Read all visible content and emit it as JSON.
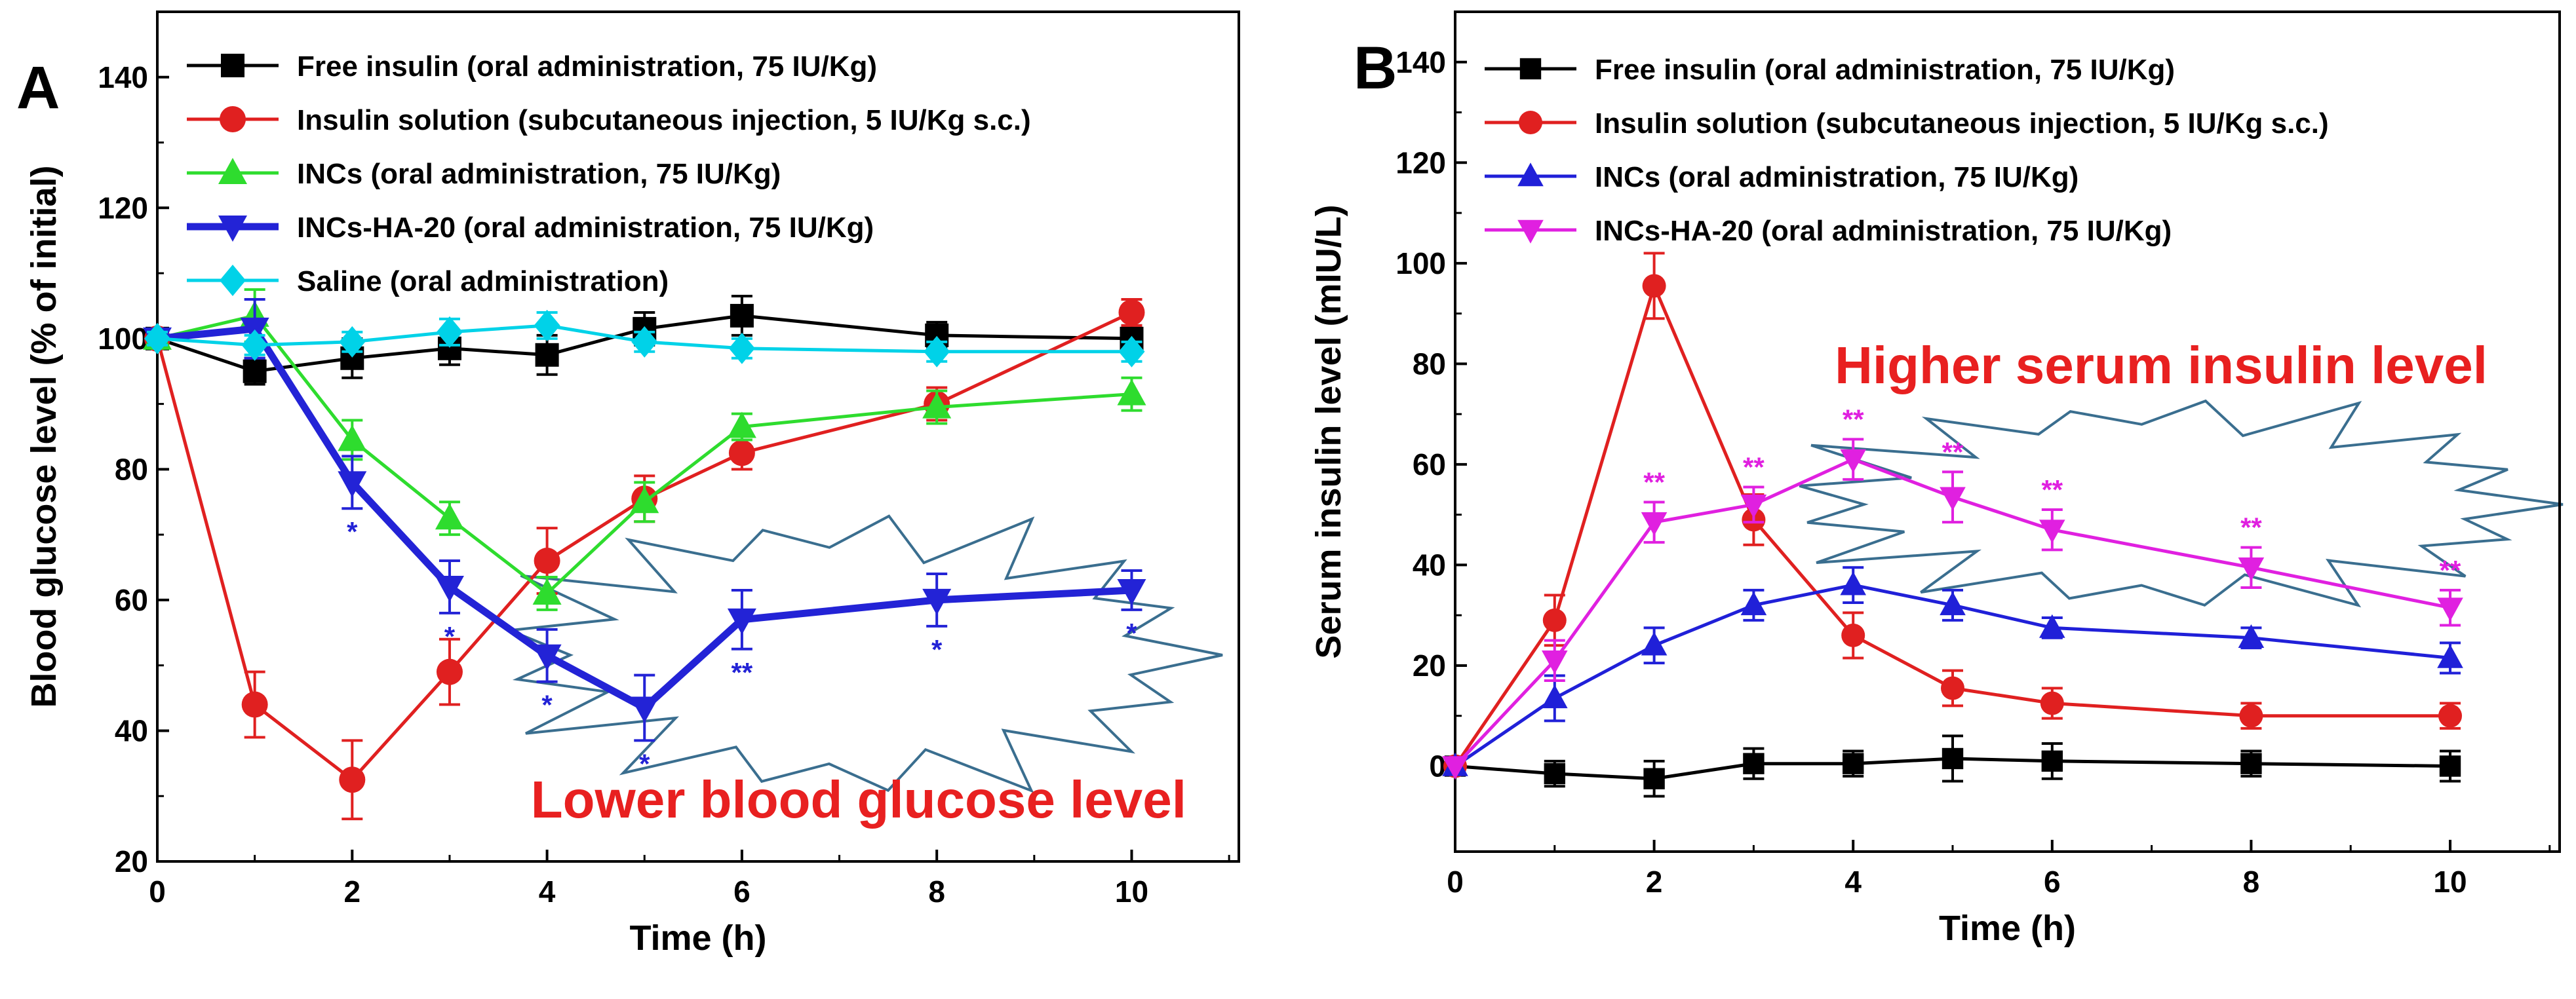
{
  "chart_data": [
    {
      "panel_label": "A",
      "type": "line",
      "title": "",
      "xlabel": "Time (h)",
      "ylabel": "Blood glucose level (% of initial)",
      "xlim": [
        0,
        11.1
      ],
      "ylim": [
        20,
        150
      ],
      "xticks": [
        0,
        2,
        4,
        6,
        8,
        10
      ],
      "yticks": [
        20,
        40,
        60,
        80,
        100,
        120,
        140
      ],
      "x": [
        0,
        1,
        2,
        3,
        4,
        5,
        6,
        8,
        10
      ],
      "legend_position": "top-left",
      "series": [
        {
          "name": "Free insulin (oral administration, 75 IU/Kg)",
          "color": "#000000",
          "marker": "square",
          "values": [
            100,
            95,
            97,
            98.5,
            97.5,
            101.5,
            103.5,
            100.5,
            100
          ],
          "errors": [
            1,
            2,
            3,
            2.5,
            3,
            2.5,
            3,
            2,
            2
          ]
        },
        {
          "name": "Insulin solution (subcutaneous injection, 5 IU/Kg s.c.)",
          "color": "#e02020",
          "marker": "circle",
          "values": [
            100,
            44,
            32.5,
            49,
            66,
            75.5,
            82.5,
            90,
            104
          ],
          "errors": [
            1,
            5,
            6,
            5,
            5,
            3.5,
            2.5,
            2.5,
            2
          ]
        },
        {
          "name": "INCs (oral administration, 75 IU/Kg)",
          "color": "#2edc2e",
          "marker": "triangle-up",
          "values": [
            100,
            103.5,
            84.5,
            72.5,
            61,
            75,
            86.5,
            89.5,
            91.5
          ],
          "errors": [
            1,
            4,
            3,
            2.5,
            2.5,
            3,
            2,
            2.5,
            2.5
          ]
        },
        {
          "name": "INCs-HA-20 (oral administration, 75 IU/Kg)",
          "color": "#2323d6",
          "marker": "triangle-down",
          "bold": true,
          "values": [
            100,
            101.5,
            78,
            62,
            51.5,
            43.5,
            57,
            60,
            61.5
          ],
          "errors": [
            1,
            4.5,
            4,
            4,
            4,
            5,
            4.5,
            4,
            3
          ],
          "significance": [
            "",
            "",
            "*",
            "*",
            "*",
            "*",
            "**",
            "*",
            "*"
          ]
        },
        {
          "name": "Saline (oral administration)",
          "color": "#00d2e8",
          "marker": "diamond",
          "values": [
            100,
            99,
            99.5,
            101,
            102,
            99.5,
            98.5,
            98,
            98
          ],
          "errors": [
            1,
            1.5,
            1.5,
            2,
            2,
            1.5,
            1.5,
            1.5,
            1.5
          ]
        }
      ],
      "annotation": "Lower blood glucose level"
    },
    {
      "panel_label": "B",
      "type": "line",
      "title": "",
      "xlabel": "Time (h)",
      "ylabel": "Serum insulin level (mIU/L)",
      "xlim": [
        0,
        11.1
      ],
      "ylim": [
        -17,
        150
      ],
      "xticks": [
        0,
        2,
        4,
        6,
        8,
        10
      ],
      "yticks": [
        0,
        20,
        40,
        60,
        80,
        100,
        120,
        140
      ],
      "x": [
        0,
        1,
        2,
        3,
        4,
        5,
        6,
        8,
        10
      ],
      "legend_position": "top-left",
      "series": [
        {
          "name": "Free insulin (oral administration, 75 IU/Kg)",
          "color": "#000000",
          "marker": "square",
          "values": [
            0,
            -1.5,
            -2.5,
            0.5,
            0.5,
            1.5,
            1,
            0.5,
            0
          ],
          "errors": [
            0,
            2.5,
            3.5,
            3,
            2.5,
            4.5,
            3.5,
            2.5,
            3
          ]
        },
        {
          "name": "Insulin solution (subcutaneous injection, 5 IU/Kg s.c.)",
          "color": "#e02020",
          "marker": "circle",
          "values": [
            0,
            29,
            95.5,
            49,
            26,
            15.5,
            12.5,
            10,
            10
          ],
          "errors": [
            0,
            5,
            6.5,
            5,
            4.5,
            3.5,
            3,
            2.5,
            2.5
          ]
        },
        {
          "name": "INCs (oral administration, 75 IU/Kg)",
          "color": "#2020d8",
          "marker": "triangle-up",
          "values": [
            0,
            13.5,
            24,
            32,
            36,
            32,
            27.5,
            25.5,
            21.5
          ],
          "errors": [
            0,
            4.5,
            3.5,
            3,
            3.5,
            3,
            2,
            2,
            3
          ]
        },
        {
          "name": "INCs-HA-20 (oral administration, 75 IU/Kg)",
          "color": "#e020e0",
          "marker": "triangle-down",
          "values": [
            0,
            21,
            48.5,
            52,
            61,
            53.5,
            47,
            39.5,
            31.5
          ],
          "errors": [
            0,
            4,
            4,
            3.5,
            4,
            5,
            4,
            4,
            3.5
          ],
          "significance": [
            "",
            "",
            "**",
            "**",
            "**",
            "**",
            "**",
            "**",
            "**"
          ]
        }
      ],
      "annotation": "Higher serum insulin level"
    }
  ]
}
